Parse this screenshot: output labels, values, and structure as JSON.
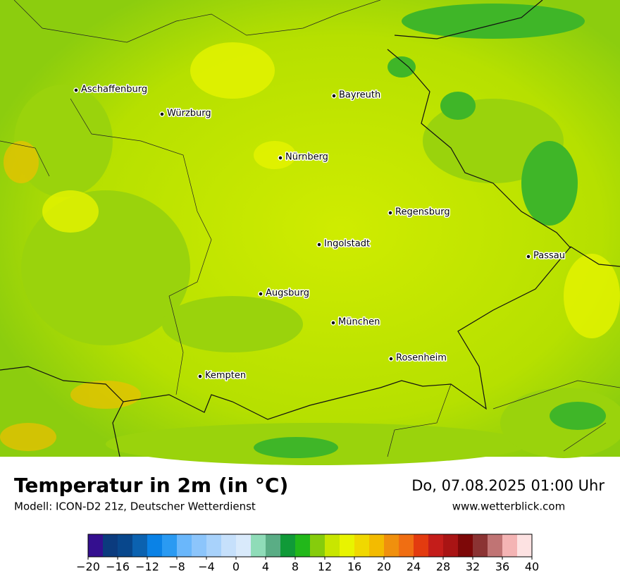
{
  "map": {
    "cities": [
      "Aschaffenburg",
      "Würzburg",
      "Bayreuth",
      "Nürnberg",
      "Regensburg",
      "Ingolstadt",
      "Passau",
      "Augsburg",
      "München",
      "Rosenheim",
      "Kempten"
    ]
  },
  "title": "Temperatur in 2m (in °C)",
  "subtitle": "Modell: ICON-D2 21z, Deutscher Wetterdienst",
  "date": "Do, 07.08.2025 01:00 Uhr",
  "source": "www.wetterblick.com",
  "colorbar": {
    "levels": [
      -20,
      -18,
      -16,
      -14,
      -12,
      -10,
      -8,
      -6,
      -4,
      -2,
      0,
      2,
      4,
      6,
      8,
      10,
      12,
      14,
      16,
      18,
      20,
      22,
      24,
      26,
      28,
      30,
      32,
      34,
      36,
      38,
      40
    ],
    "colors": [
      "#340f8f",
      "#0b3b7e",
      "#08478c",
      "#0b62b0",
      "#0a82e6",
      "#2a9af2",
      "#6ab7fb",
      "#8cc5fb",
      "#a8d2fb",
      "#c6e0fb",
      "#d9eafb",
      "#8fdcb8",
      "#5aad85",
      "#109a38",
      "#22b81a",
      "#86cc0c",
      "#c8e600",
      "#e8f400",
      "#f0d800",
      "#f3bb00",
      "#f0900d",
      "#f06e12",
      "#e33b0f",
      "#c41d1a",
      "#a91414",
      "#7d0808",
      "#8b3333",
      "#c07474",
      "#f4b4b4",
      "#fde2e2"
    ],
    "ticks": [
      {
        "value": -20,
        "label": "−20"
      },
      {
        "value": -16,
        "label": "−16"
      },
      {
        "value": -12,
        "label": "−12"
      },
      {
        "value": -8,
        "label": "−8"
      },
      {
        "value": -4,
        "label": "−4"
      },
      0,
      4,
      8,
      12,
      16,
      20,
      24,
      28,
      32,
      36,
      40
    ]
  }
}
